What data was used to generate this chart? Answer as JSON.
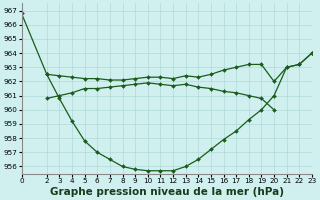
{
  "title": "Graphe pression niveau de la mer (hPa)",
  "bg_color": "#d0f0f0",
  "grid_color": "#b0d8d8",
  "line_color": "#1a5c1a",
  "xlim": [
    0,
    23
  ],
  "ylim": [
    955.5,
    967.5
  ],
  "yticks": [
    956,
    957,
    958,
    959,
    960,
    961,
    962,
    963,
    964,
    965,
    966,
    967
  ],
  "xticks": [
    0,
    2,
    3,
    4,
    5,
    6,
    7,
    8,
    9,
    10,
    11,
    12,
    13,
    14,
    15,
    16,
    17,
    18,
    19,
    20,
    21,
    22,
    23
  ],
  "line1_x": [
    0,
    2,
    3,
    4,
    5,
    6,
    7,
    8,
    9,
    10,
    11,
    12,
    13,
    14,
    15,
    16,
    17,
    18,
    19,
    20,
    21,
    22,
    23
  ],
  "line1_y": [
    966.8,
    962.5,
    960.8,
    959.2,
    957.8,
    957.0,
    956.5,
    956.0,
    955.8,
    955.7,
    955.7,
    955.7,
    956.0,
    956.5,
    957.2,
    957.9,
    958.5,
    959.3,
    960.0,
    961.0,
    963.0,
    963.2,
    964.0
  ],
  "line2_x": [
    2,
    3,
    4,
    5,
    6,
    7,
    8,
    9,
    10,
    11,
    12,
    13,
    14,
    15,
    16,
    17,
    18,
    19,
    20,
    21,
    22,
    23
  ],
  "line2_y": [
    962.5,
    962.4,
    962.3,
    962.2,
    962.2,
    962.1,
    962.1,
    962.2,
    962.3,
    962.3,
    962.2,
    962.4,
    962.3,
    962.5,
    962.8,
    963.0,
    963.2,
    963.2,
    962.0,
    963.0,
    963.2,
    964.0
  ],
  "line3_x": [
    2,
    3,
    4,
    5,
    6,
    7,
    8,
    9,
    10,
    11,
    12,
    13,
    14,
    15,
    16,
    17,
    18,
    19,
    20
  ],
  "line3_y": [
    960.8,
    961.0,
    961.2,
    961.5,
    961.5,
    961.6,
    961.7,
    961.8,
    961.9,
    961.8,
    961.7,
    961.8,
    961.6,
    961.5,
    961.3,
    961.2,
    961.0,
    960.8,
    960.0
  ],
  "marker": "D",
  "markersize": 2.0,
  "linewidth": 0.9,
  "title_fontsize": 7.5,
  "tick_fontsize": 5.2
}
